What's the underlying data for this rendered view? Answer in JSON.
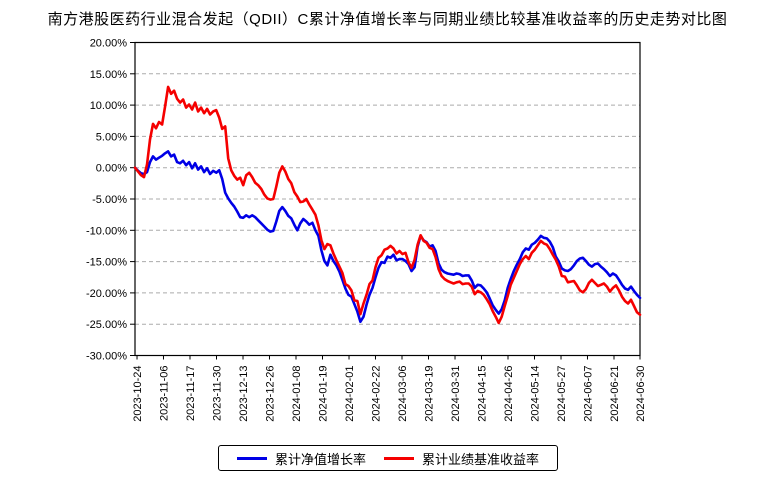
{
  "chart_data": {
    "type": "line",
    "title": "南方港股医药行业混合发起（QDII）C累计净值增长率与同期业绩比较基准收益率的历史走势对比图",
    "y_axis": {
      "min": -30,
      "max": 20,
      "tick_step": 5,
      "unit": "percent",
      "tick_labels": [
        "20.00%",
        "15.00%",
        "10.00%",
        "5.00%",
        "0.00%",
        "-5.00%",
        "-10.00%",
        "-15.00%",
        "-20.00%",
        "-25.00%",
        "-30.00%"
      ]
    },
    "x_axis": {
      "ticks": [
        {
          "label": "2023-10-24",
          "pos": 0.004
        },
        {
          "label": "2023-11-06",
          "pos": 0.0564
        },
        {
          "label": "2023-11-17",
          "pos": 0.1089
        },
        {
          "label": "2023-11-30",
          "pos": 0.1614
        },
        {
          "label": "2023-12-13",
          "pos": 0.2139
        },
        {
          "label": "2023-12-26",
          "pos": 0.2663
        },
        {
          "label": "2024-01-08",
          "pos": 0.3188
        },
        {
          "label": "2024-01-19",
          "pos": 0.3713
        },
        {
          "label": "2024-02-01",
          "pos": 0.4238
        },
        {
          "label": "2024-02-22",
          "pos": 0.4762
        },
        {
          "label": "2024-03-06",
          "pos": 0.5287
        },
        {
          "label": "2024-03-19",
          "pos": 0.5812
        },
        {
          "label": "2024-03-31",
          "pos": 0.6337
        },
        {
          "label": "2024-04-15",
          "pos": 0.6861
        },
        {
          "label": "2024-04-26",
          "pos": 0.7386
        },
        {
          "label": "2024-05-14",
          "pos": 0.7911
        },
        {
          "label": "2024-05-27",
          "pos": 0.8436
        },
        {
          "label": "2024-06-07",
          "pos": 0.896
        },
        {
          "label": "2024-06-21",
          "pos": 0.9485
        },
        {
          "label": "2024-06-30",
          "pos": 1.0
        }
      ]
    },
    "grid": {
      "horizontal_dashed": true,
      "color": "#ababab"
    },
    "frame_color": "#000000",
    "legend_position": "bottom-center",
    "series": [
      {
        "name": "累计净值增长率",
        "color": "#0000e6",
        "values": [
          0.0,
          -0.5,
          -0.9,
          -1.0,
          -0.7,
          0.9,
          1.8,
          1.3,
          1.6,
          1.9,
          2.3,
          2.6,
          1.8,
          2.1,
          0.9,
          0.7,
          1.1,
          0.4,
          0.9,
          -0.1,
          0.7,
          -0.3,
          0.2,
          -0.7,
          -0.1,
          -1.0,
          -0.5,
          -0.8,
          -0.4,
          -1.8,
          -4.0,
          -4.9,
          -5.6,
          -6.2,
          -7.0,
          -7.9,
          -8.0,
          -7.6,
          -7.9,
          -7.6,
          -7.9,
          -8.4,
          -8.9,
          -9.4,
          -9.9,
          -10.2,
          -10.1,
          -8.6,
          -6.9,
          -6.3,
          -6.9,
          -7.7,
          -8.1,
          -9.1,
          -10.0,
          -8.9,
          -8.2,
          -8.6,
          -9.1,
          -8.8,
          -10.0,
          -10.9,
          -13.2,
          -14.9,
          -15.6,
          -13.9,
          -14.9,
          -15.6,
          -16.6,
          -17.9,
          -19.3,
          -20.3,
          -20.6,
          -21.8,
          -23.0,
          -24.6,
          -23.8,
          -21.9,
          -20.3,
          -19.2,
          -17.5,
          -16.0,
          -15.1,
          -15.2,
          -14.2,
          -14.4,
          -13.9,
          -14.8,
          -14.6,
          -14.6,
          -14.9,
          -15.4,
          -16.5,
          -15.9,
          -12.6,
          -10.9,
          -11.6,
          -11.9,
          -12.6,
          -12.4,
          -13.3,
          -15.3,
          -16.3,
          -16.7,
          -16.9,
          -17.0,
          -17.1,
          -16.9,
          -17.0,
          -17.3,
          -17.2,
          -17.2,
          -18.0,
          -19.2,
          -18.7,
          -18.8,
          -19.3,
          -19.9,
          -20.9,
          -22.0,
          -22.7,
          -23.3,
          -22.6,
          -21.2,
          -19.2,
          -17.8,
          -16.5,
          -15.5,
          -14.6,
          -13.5,
          -12.9,
          -13.1,
          -12.3,
          -12.0,
          -11.5,
          -10.9,
          -11.2,
          -11.3,
          -11.8,
          -12.7,
          -14.2,
          -15.0,
          -16.1,
          -16.4,
          -16.5,
          -16.2,
          -15.6,
          -14.9,
          -14.5,
          -14.4,
          -14.9,
          -15.5,
          -15.8,
          -15.4,
          -15.3,
          -15.8,
          -16.2,
          -16.7,
          -17.3,
          -16.9,
          -17.2,
          -17.9,
          -18.7,
          -19.3,
          -19.5,
          -19.0,
          -19.7,
          -20.3,
          -20.8
        ]
      },
      {
        "name": "累计业绩基准收益率",
        "color": "#f50000",
        "values": [
          0.0,
          -0.6,
          -1.2,
          -1.5,
          0.5,
          4.5,
          7.0,
          6.3,
          7.3,
          6.9,
          9.8,
          12.9,
          11.8,
          12.3,
          11.0,
          10.4,
          10.9,
          9.6,
          10.1,
          9.3,
          10.4,
          9.0,
          9.6,
          8.7,
          9.4,
          8.5,
          9.0,
          9.2,
          8.0,
          6.2,
          6.6,
          1.5,
          -0.4,
          -1.3,
          -1.9,
          -1.6,
          -2.8,
          -1.2,
          -0.8,
          -1.5,
          -2.4,
          -2.8,
          -3.4,
          -4.3,
          -4.9,
          -5.1,
          -5.0,
          -3.0,
          -0.8,
          0.2,
          -0.6,
          -1.8,
          -2.5,
          -3.9,
          -4.6,
          -5.5,
          -5.4,
          -5.0,
          -5.9,
          -6.7,
          -7.5,
          -9.2,
          -11.6,
          -13.0,
          -12.2,
          -12.4,
          -13.7,
          -14.8,
          -15.8,
          -16.8,
          -18.6,
          -18.9,
          -19.6,
          -21.2,
          -21.3,
          -23.4,
          -21.7,
          -20.3,
          -18.6,
          -18.0,
          -15.9,
          -14.4,
          -14.0,
          -13.1,
          -12.9,
          -12.5,
          -12.9,
          -13.7,
          -13.3,
          -13.8,
          -13.6,
          -15.1,
          -16.0,
          -14.7,
          -12.3,
          -10.8,
          -11.7,
          -12.0,
          -12.8,
          -13.0,
          -14.3,
          -16.2,
          -17.3,
          -17.8,
          -18.1,
          -18.3,
          -18.5,
          -18.3,
          -18.2,
          -18.6,
          -18.5,
          -18.5,
          -19.0,
          -20.2,
          -19.7,
          -19.9,
          -20.3,
          -21.0,
          -21.8,
          -22.9,
          -23.8,
          -24.8,
          -23.8,
          -22.1,
          -20.5,
          -18.7,
          -17.6,
          -16.5,
          -15.4,
          -14.6,
          -14.1,
          -14.6,
          -13.6,
          -13.1,
          -12.4,
          -11.7,
          -12.1,
          -12.3,
          -13.0,
          -13.9,
          -14.7,
          -15.8,
          -17.3,
          -17.4,
          -18.3,
          -18.2,
          -18.1,
          -18.8,
          -19.6,
          -19.9,
          -19.4,
          -18.4,
          -17.9,
          -18.4,
          -18.9,
          -18.7,
          -18.5,
          -19.0,
          -19.8,
          -19.2,
          -18.8,
          -19.6,
          -20.6,
          -21.3,
          -21.7,
          -21.1,
          -22.1,
          -23.1,
          -23.5
        ]
      }
    ]
  }
}
